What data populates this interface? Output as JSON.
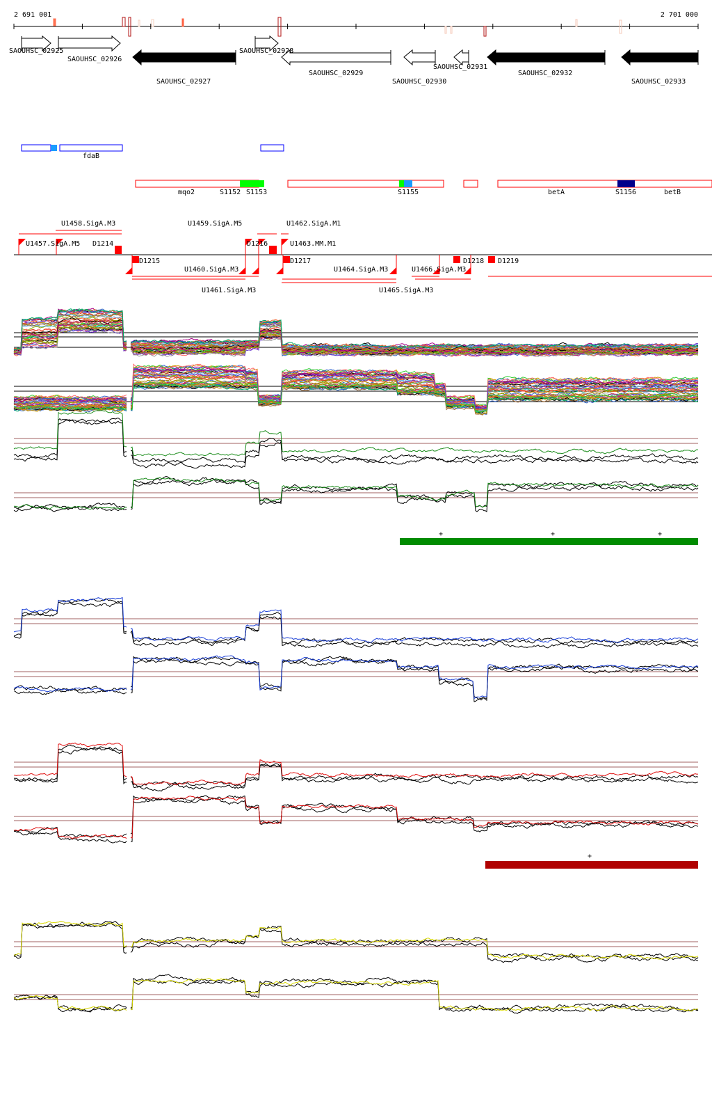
{
  "ruler": {
    "start_label": "2 691 001",
    "end_label": "2 701 000"
  },
  "genes": [
    {
      "name": "SAOUHSC_02925",
      "strand": "+",
      "filled": false
    },
    {
      "name": "SAOUHSC_02926",
      "strand": "+",
      "filled": false
    },
    {
      "name": "SAOUHSC_02927",
      "strand": "-",
      "filled": true
    },
    {
      "name": "SAOUHSC_02928",
      "strand": "+",
      "filled": false
    },
    {
      "name": "SAOUHSC_02929",
      "strand": "-",
      "filled": false
    },
    {
      "name": "SAOUHSC_02930",
      "strand": "-",
      "filled": false
    },
    {
      "name": "SAOUHSC_02931",
      "strand": "-",
      "filled": false
    },
    {
      "name": "SAOUHSC_02932",
      "strand": "-",
      "filled": true
    },
    {
      "name": "SAOUHSC_02933",
      "strand": "-",
      "filled": true
    }
  ],
  "features_forward": [
    {
      "label": "fdaB"
    }
  ],
  "features_reverse": [
    {
      "label": "mqo2"
    },
    {
      "label": "S1152"
    },
    {
      "label": "S1153"
    },
    {
      "label": "S1155"
    },
    {
      "label": "betA"
    },
    {
      "label": "S1156"
    },
    {
      "label": "betB"
    }
  ],
  "tss_labels": [
    "U1457.SigA.M5",
    "U1458.SigA.M3",
    "D1214",
    "D1215",
    "U1460.SigA.M3",
    "U1461.SigA.M3",
    "U1459.SigA.M5",
    "D1216",
    "U1462.SigA.M1",
    "U1463.MM.M1",
    "D1217",
    "U1464.SigA.M3",
    "U1465.SigA.M3",
    "U1466.SigA.M3",
    "D1218",
    "D1219"
  ],
  "segment_marks": {
    "glyph": "+"
  },
  "colors": {
    "green_segment": "#008c00",
    "red_segment": "#b00000",
    "forward_feature": "#0000ff",
    "reverse_feature": "#ff0000",
    "reference_line": "#a06060",
    "trace_green": "#1a8c1a",
    "trace_blue": "#1a3fd6",
    "trace_red": "#e01010",
    "trace_yellow": "#d8d800"
  }
}
